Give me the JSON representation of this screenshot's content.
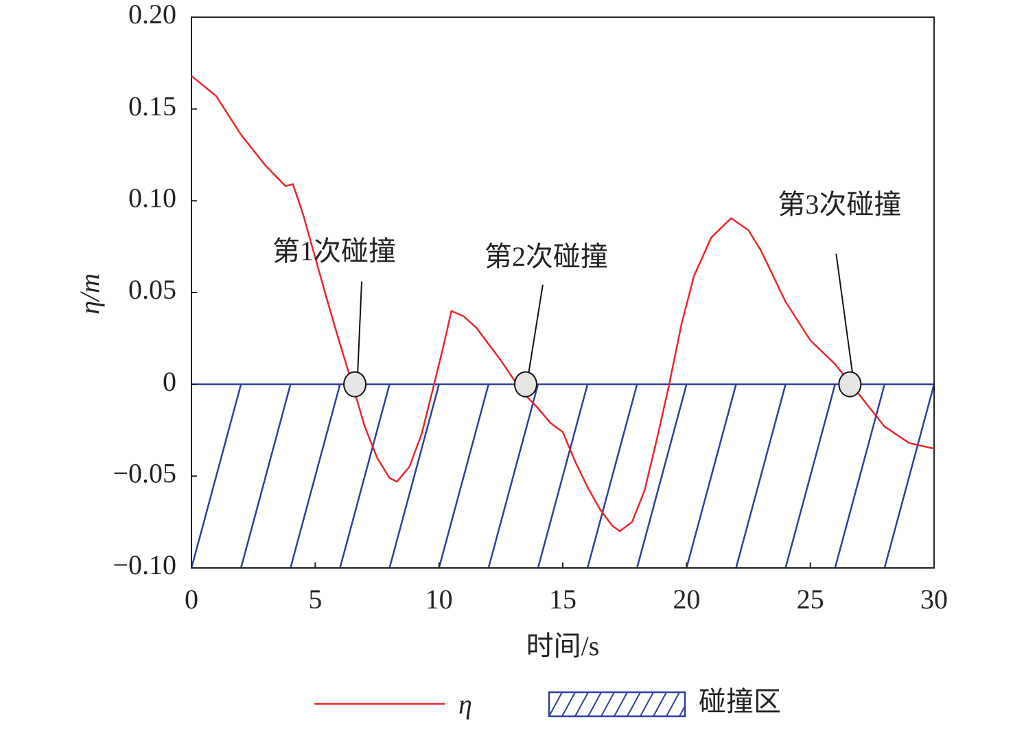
{
  "chart_data": {
    "type": "line",
    "x_label": "时间/s",
    "y_label": "η/m",
    "xlim": [
      0,
      30
    ],
    "xticks": [
      0,
      5,
      10,
      15,
      20,
      25,
      30
    ],
    "ylim": [
      -0.1,
      0.2
    ],
    "yticks": [
      {
        "value": -0.1,
        "label": "−0.10"
      },
      {
        "value": -0.05,
        "label": "−0.05"
      },
      0,
      {
        "value": 0.05,
        "label": "0.05"
      },
      {
        "value": 0.1,
        "label": "0.10"
      },
      {
        "value": 0.15,
        "label": "0.15"
      },
      {
        "value": 0.2,
        "label": "0.20"
      }
    ],
    "x": [
      0,
      1,
      2,
      3,
      3.8,
      4.1,
      4.5,
      5,
      5.5,
      6,
      6.5,
      7,
      7.5,
      8,
      8.3,
      8.8,
      9.3,
      9.8,
      10.2,
      10.5,
      11,
      11.5,
      12,
      12.5,
      13,
      13.5,
      14,
      14.5,
      15,
      15.5,
      16,
      16.5,
      17,
      17.3,
      17.8,
      18.3,
      18.8,
      19.3,
      19.8,
      20.3,
      21,
      21.8,
      22.5,
      23,
      24,
      25,
      26,
      27,
      28,
      29,
      30
    ],
    "series": [
      {
        "name": "η",
        "color": "#e8262a",
        "values": [
          0.168,
          0.157,
          0.136,
          0.119,
          0.108,
          0.109,
          0.093,
          0.069,
          0.045,
          0.022,
          0,
          -0.023,
          -0.04,
          -0.051,
          -0.053,
          -0.045,
          -0.027,
          0,
          0.022,
          0.04,
          0.037,
          0.031,
          0.022,
          0.013,
          0.003,
          -0.006,
          -0.013,
          -0.021,
          -0.026,
          -0.042,
          -0.056,
          -0.068,
          -0.077,
          -0.08,
          -0.075,
          -0.058,
          -0.03,
          0,
          0.033,
          0.059,
          0.08,
          0.0905,
          0.084,
          0.073,
          0.045,
          0.024,
          0.011,
          -0.006,
          -0.023,
          -0.032,
          -0.035
        ]
      }
    ],
    "zone": {
      "name": "碰撞区",
      "color": "#2b3fa0",
      "range": [
        -0.1,
        0
      ]
    },
    "collisions": [
      {
        "label": "第1次碰撞",
        "x": 6.6,
        "y": 0
      },
      {
        "label": "第2次碰撞",
        "x": 13.5,
        "y": 0
      },
      {
        "label": "第3次碰撞",
        "x": 26.6,
        "y": 0
      }
    ]
  }
}
